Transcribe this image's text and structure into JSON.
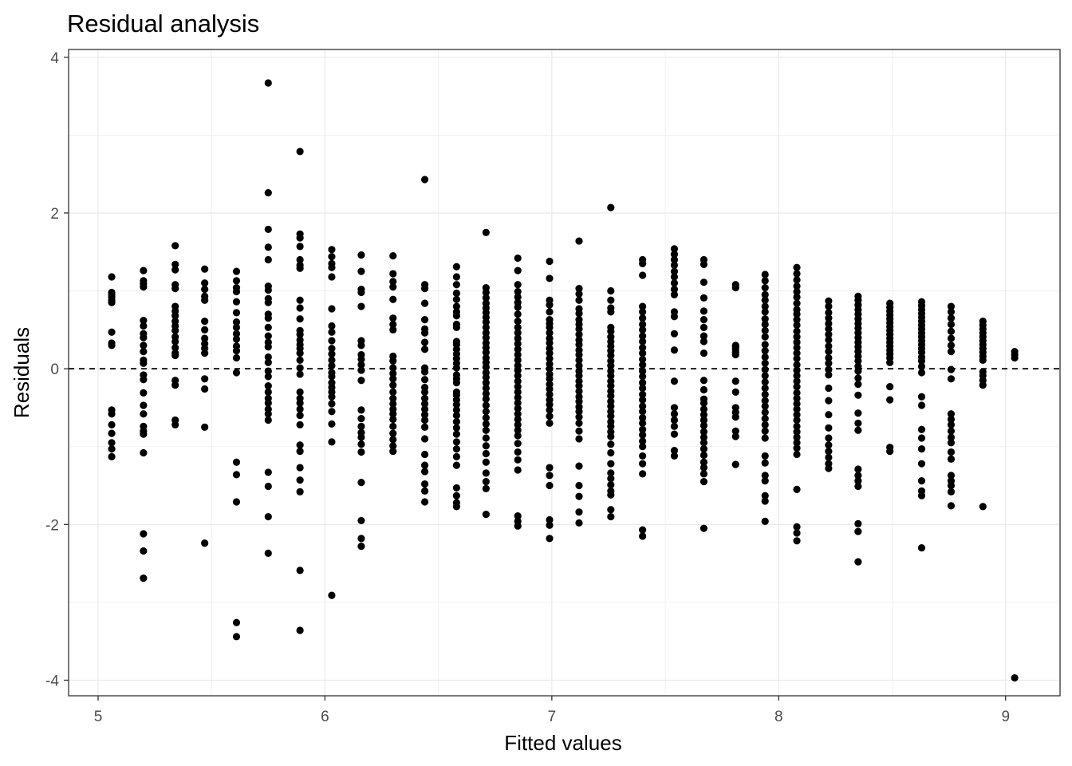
{
  "chart_data": {
    "type": "scatter",
    "title": "Residual analysis",
    "xlabel": "Fitted values",
    "ylabel": "Residuals",
    "xlim": [
      4.87,
      9.24
    ],
    "ylim": [
      -4.2,
      4.1
    ],
    "xticks": [
      "5",
      "6",
      "7",
      "8",
      "9"
    ],
    "yticks": [
      "-4",
      "-2",
      "0",
      "2",
      "4"
    ],
    "grid": true,
    "reference_line": {
      "y": 0,
      "style": "dashed"
    },
    "point_color": "#000000",
    "columns": [
      {
        "x": 5.06,
        "y": [
          1.18,
          0.98,
          0.95,
          0.92,
          0.88,
          0.85,
          0.47,
          0.33,
          0.3,
          -0.53,
          -0.58,
          -0.72,
          -0.83,
          -0.95,
          -1.03,
          -1.13
        ]
      },
      {
        "x": 5.2,
        "y": [
          1.26,
          1.13,
          1.09,
          1.05,
          0.62,
          0.55,
          0.45,
          0.4,
          0.3,
          0.22,
          0.11,
          0.07,
          -0.08,
          -0.14,
          -0.31,
          -0.47,
          -0.58,
          -0.74,
          -0.8,
          -0.84,
          -1.08,
          -2.12,
          -2.34,
          -2.69
        ]
      },
      {
        "x": 5.34,
        "y": [
          1.58,
          1.34,
          1.27,
          1.08,
          1.03,
          0.8,
          0.74,
          0.68,
          0.61,
          0.55,
          0.49,
          0.41,
          0.35,
          0.27,
          0.2,
          0.17,
          -0.15,
          -0.21,
          -0.66,
          -0.72
        ]
      },
      {
        "x": 5.47,
        "y": [
          1.28,
          1.1,
          1.02,
          0.93,
          0.88,
          0.61,
          0.5,
          0.39,
          0.32,
          0.26,
          0.2,
          -0.13,
          -0.26,
          -0.75,
          -2.24
        ]
      },
      {
        "x": 5.61,
        "y": [
          1.25,
          1.13,
          1.04,
          0.99,
          0.86,
          0.72,
          0.6,
          0.53,
          0.45,
          0.38,
          0.29,
          0.23,
          0.14,
          -0.05,
          -1.2,
          -1.36,
          -1.71,
          -3.26,
          -3.44
        ]
      },
      {
        "x": 5.75,
        "y": [
          3.67,
          2.26,
          1.79,
          1.56,
          1.4,
          1.06,
          1.01,
          0.9,
          0.85,
          0.7,
          0.65,
          0.53,
          0.42,
          0.34,
          0.28,
          0.15,
          0.08,
          -0.03,
          -0.1,
          -0.22,
          -0.3,
          -0.38,
          -0.44,
          -0.52,
          -0.58,
          -0.66,
          -1.33,
          -1.51,
          -1.9,
          -2.37
        ]
      },
      {
        "x": 5.89,
        "y": [
          2.79,
          1.73,
          1.68,
          1.57,
          1.4,
          1.33,
          1.29,
          0.88,
          0.78,
          0.64,
          0.49,
          0.44,
          0.37,
          0.31,
          0.26,
          0.2,
          0.11,
          0.01,
          -0.07,
          -0.3,
          -0.38,
          -0.44,
          -0.52,
          -0.6,
          -0.72,
          -0.98,
          -1.06,
          -1.27,
          -1.43,
          -1.58,
          -2.59,
          -3.36
        ]
      },
      {
        "x": 6.03,
        "y": [
          1.53,
          1.44,
          1.35,
          1.3,
          1.18,
          0.77,
          0.55,
          0.47,
          0.36,
          0.26,
          0.19,
          0.11,
          0.04,
          -0.05,
          -0.1,
          -0.18,
          -0.24,
          -0.3,
          -0.36,
          -0.45,
          -0.55,
          -0.71,
          -0.94,
          -2.91
        ]
      },
      {
        "x": 6.16,
        "y": [
          1.46,
          1.25,
          1.02,
          0.98,
          0.8,
          0.36,
          0.3,
          0.18,
          0.12,
          0.05,
          -0.02,
          -0.15,
          -0.53,
          -0.64,
          -0.74,
          -0.82,
          -0.88,
          -0.97,
          -1.07,
          -1.46,
          -1.95,
          -2.18,
          -2.28
        ]
      },
      {
        "x": 6.3,
        "y": [
          1.45,
          1.22,
          1.12,
          1.05,
          0.89,
          0.65,
          0.57,
          0.5,
          0.16,
          0.1,
          0.01,
          -0.06,
          -0.13,
          -0.21,
          -0.3,
          -0.38,
          -0.45,
          -0.52,
          -0.58,
          -0.65,
          -0.74,
          -0.83,
          -0.91,
          -0.99,
          -1.06
        ]
      },
      {
        "x": 6.44,
        "y": [
          2.43,
          1.08,
          1.03,
          0.84,
          0.63,
          0.51,
          0.46,
          0.34,
          0.25,
          0.01,
          -0.04,
          -0.14,
          -0.24,
          -0.3,
          -0.38,
          -0.45,
          -0.52,
          -0.59,
          -0.66,
          -0.75,
          -0.9,
          -1.1,
          -1.24,
          -1.32,
          -1.48,
          -1.57,
          -1.71
        ]
      },
      {
        "x": 6.58,
        "y": [
          1.31,
          1.18,
          1.08,
          0.97,
          0.89,
          0.8,
          0.73,
          0.68,
          0.57,
          0.53,
          0.35,
          0.31,
          0.25,
          0.19,
          0.13,
          0.07,
          0.01,
          -0.08,
          -0.13,
          -0.18,
          -0.3,
          -0.34,
          -0.4,
          -0.46,
          -0.53,
          -0.6,
          -0.68,
          -0.76,
          -0.84,
          -0.94,
          -1.03,
          -1.13,
          -1.24,
          -1.53,
          -1.63,
          -1.72,
          -1.77
        ]
      },
      {
        "x": 6.71,
        "y": [
          1.75,
          1.04,
          0.98,
          0.91,
          0.84,
          0.78,
          0.72,
          0.66,
          0.6,
          0.53,
          0.46,
          0.4,
          0.33,
          0.27,
          0.21,
          0.14,
          0.08,
          0.02,
          -0.05,
          -0.11,
          -0.18,
          -0.25,
          -0.32,
          -0.39,
          -0.47,
          -0.55,
          -0.63,
          -0.71,
          -0.79,
          -0.89,
          -0.99,
          -1.09,
          -1.2,
          -1.34,
          -1.45,
          -1.54,
          -1.87
        ]
      },
      {
        "x": 6.85,
        "y": [
          1.42,
          1.26,
          1.08,
          0.99,
          0.92,
          0.85,
          0.79,
          0.7,
          0.61,
          0.53,
          0.46,
          0.39,
          0.32,
          0.25,
          0.18,
          0.11,
          0.04,
          -0.02,
          -0.09,
          -0.16,
          -0.23,
          -0.3,
          -0.37,
          -0.44,
          -0.51,
          -0.58,
          -0.65,
          -0.72,
          -0.79,
          -0.86,
          -0.96,
          -1.07,
          -1.17,
          -1.3,
          -1.89,
          -1.96,
          -2.02
        ]
      },
      {
        "x": 6.99,
        "y": [
          1.38,
          1.16,
          0.88,
          0.82,
          0.73,
          0.63,
          0.58,
          0.53,
          0.46,
          0.39,
          0.33,
          0.26,
          0.2,
          0.13,
          0.06,
          0.0,
          -0.07,
          -0.13,
          -0.2,
          -0.26,
          -0.33,
          -0.4,
          -0.46,
          -0.53,
          -0.61,
          -0.7,
          -1.27,
          -1.37,
          -1.5,
          -1.94,
          -2.01,
          -2.18
        ]
      },
      {
        "x": 7.12,
        "y": [
          1.64,
          1.03,
          0.96,
          0.88,
          0.77,
          0.71,
          0.63,
          0.57,
          0.51,
          0.44,
          0.37,
          0.31,
          0.24,
          0.18,
          0.11,
          0.04,
          -0.03,
          -0.09,
          -0.16,
          -0.22,
          -0.29,
          -0.36,
          -0.42,
          -0.49,
          -0.55,
          -0.62,
          -0.7,
          -0.8,
          -0.9,
          -1.25,
          -1.5,
          -1.64,
          -1.84,
          -1.98
        ]
      },
      {
        "x": 7.26,
        "y": [
          2.07,
          1.0,
          0.88,
          0.78,
          0.73,
          0.53,
          0.48,
          0.41,
          0.35,
          0.29,
          0.23,
          0.17,
          0.1,
          0.04,
          -0.03,
          -0.09,
          -0.16,
          -0.22,
          -0.29,
          -0.35,
          -0.42,
          -0.48,
          -0.55,
          -0.61,
          -0.68,
          -0.74,
          -0.81,
          -0.87,
          -0.97,
          -1.08,
          -1.22,
          -1.34,
          -1.41,
          -1.49,
          -1.57,
          -1.62,
          -1.81,
          -1.9
        ]
      },
      {
        "x": 7.4,
        "y": [
          1.4,
          1.35,
          1.2,
          0.8,
          0.73,
          0.65,
          0.57,
          0.5,
          0.42,
          0.35,
          0.27,
          0.2,
          0.12,
          0.05,
          -0.03,
          -0.1,
          -0.18,
          -0.25,
          -0.33,
          -0.4,
          -0.48,
          -0.55,
          -0.63,
          -0.7,
          -0.78,
          -0.85,
          -0.93,
          -1.0,
          -1.12,
          -1.22,
          -1.35,
          -2.07,
          -2.15
        ]
      },
      {
        "x": 7.54,
        "y": [
          1.54,
          1.47,
          1.4,
          1.33,
          1.25,
          1.18,
          1.1,
          1.02,
          0.95,
          0.73,
          0.67,
          0.45,
          0.24,
          -0.16,
          -0.5,
          -0.58,
          -0.66,
          -0.74,
          -0.84,
          -1.05,
          -1.12
        ]
      },
      {
        "x": 7.67,
        "y": [
          1.4,
          1.34,
          1.11,
          0.91,
          0.74,
          0.63,
          0.53,
          0.42,
          0.35,
          0.2,
          -0.15,
          -0.27,
          -0.39,
          -0.44,
          -0.52,
          -0.59,
          -0.66,
          -0.73,
          -0.81,
          -0.88,
          -0.95,
          -1.03,
          -1.11,
          -1.2,
          -1.27,
          -1.35,
          -1.45,
          -2.05
        ]
      },
      {
        "x": 7.81,
        "y": [
          1.08,
          1.04,
          0.3,
          0.28,
          0.25,
          0.21,
          0.18,
          -0.16,
          -0.3,
          -0.5,
          -0.56,
          -0.62,
          -0.8,
          -0.87,
          -1.23
        ]
      },
      {
        "x": 7.94,
        "y": [
          1.21,
          1.13,
          1.04,
          0.95,
          0.88,
          0.8,
          0.73,
          0.64,
          0.57,
          0.49,
          0.41,
          0.31,
          0.23,
          0.15,
          0.07,
          -0.01,
          -0.09,
          -0.17,
          -0.25,
          -0.33,
          -0.41,
          -0.48,
          -0.56,
          -0.64,
          -0.72,
          -0.8,
          -0.89,
          -1.12,
          -1.21,
          -1.37,
          -1.44,
          -1.63,
          -1.7,
          -1.96
        ]
      },
      {
        "x": 8.08,
        "y": [
          1.3,
          1.22,
          1.14,
          1.06,
          0.99,
          0.92,
          0.84,
          0.76,
          0.7,
          0.63,
          0.56,
          0.48,
          0.41,
          0.34,
          0.27,
          0.2,
          0.13,
          0.05,
          -0.02,
          -0.09,
          -0.16,
          -0.23,
          -0.31,
          -0.38,
          -0.45,
          -0.52,
          -0.59,
          -0.66,
          -0.74,
          -0.81,
          -0.88,
          -0.95,
          -1.02,
          -1.1,
          -1.55,
          -2.03,
          -2.11,
          -2.21
        ]
      },
      {
        "x": 8.22,
        "y": [
          0.87,
          0.8,
          0.72,
          0.65,
          0.58,
          0.51,
          0.44,
          0.37,
          0.29,
          0.22,
          0.14,
          0.07,
          -0.01,
          -0.08,
          -0.25,
          -0.41,
          -0.59,
          -0.76,
          -0.89,
          -0.98,
          -1.06,
          -1.14,
          -1.22,
          -1.28
        ]
      },
      {
        "x": 8.35,
        "y": [
          0.93,
          0.88,
          0.82,
          0.76,
          0.7,
          0.64,
          0.58,
          0.52,
          0.46,
          0.4,
          0.34,
          0.28,
          0.22,
          0.16,
          0.1,
          0.03,
          -0.03,
          -0.12,
          -0.2,
          -0.34,
          -0.57,
          -0.7,
          -0.79,
          -1.29,
          -1.37,
          -1.44,
          -1.51,
          -1.99,
          -2.09,
          -2.48
        ]
      },
      {
        "x": 8.49,
        "y": [
          0.84,
          0.79,
          0.74,
          0.69,
          0.64,
          0.59,
          0.54,
          0.49,
          0.44,
          0.39,
          0.34,
          0.29,
          0.24,
          0.19,
          0.14,
          0.08,
          -0.23,
          -0.4,
          -1.01,
          -1.06
        ]
      },
      {
        "x": 8.63,
        "y": [
          0.86,
          0.81,
          0.76,
          0.71,
          0.66,
          0.61,
          0.56,
          0.51,
          0.46,
          0.41,
          0.36,
          0.31,
          0.26,
          0.21,
          0.15,
          0.1,
          0.03,
          -0.05,
          -0.36,
          -0.47,
          -0.78,
          -0.89,
          -1.03,
          -1.22,
          -1.44,
          -1.57,
          -1.63,
          -2.3
        ]
      },
      {
        "x": 8.76,
        "y": [
          0.8,
          0.73,
          0.65,
          0.57,
          0.48,
          0.39,
          0.3,
          0.22,
          -0.01,
          -0.13,
          -0.58,
          -0.65,
          -0.72,
          -0.8,
          -0.88,
          -0.95,
          -1.07,
          -1.16,
          -1.37,
          -1.44,
          -1.5,
          -1.58,
          -1.76
        ]
      },
      {
        "x": 8.9,
        "y": [
          0.61,
          0.56,
          0.51,
          0.46,
          0.41,
          0.36,
          0.31,
          0.26,
          0.21,
          0.16,
          0.11,
          -0.04,
          -0.09,
          -0.15,
          -0.21,
          -1.77
        ]
      },
      {
        "x": 9.04,
        "y": [
          0.22,
          0.18,
          0.14,
          -3.97
        ]
      }
    ]
  }
}
